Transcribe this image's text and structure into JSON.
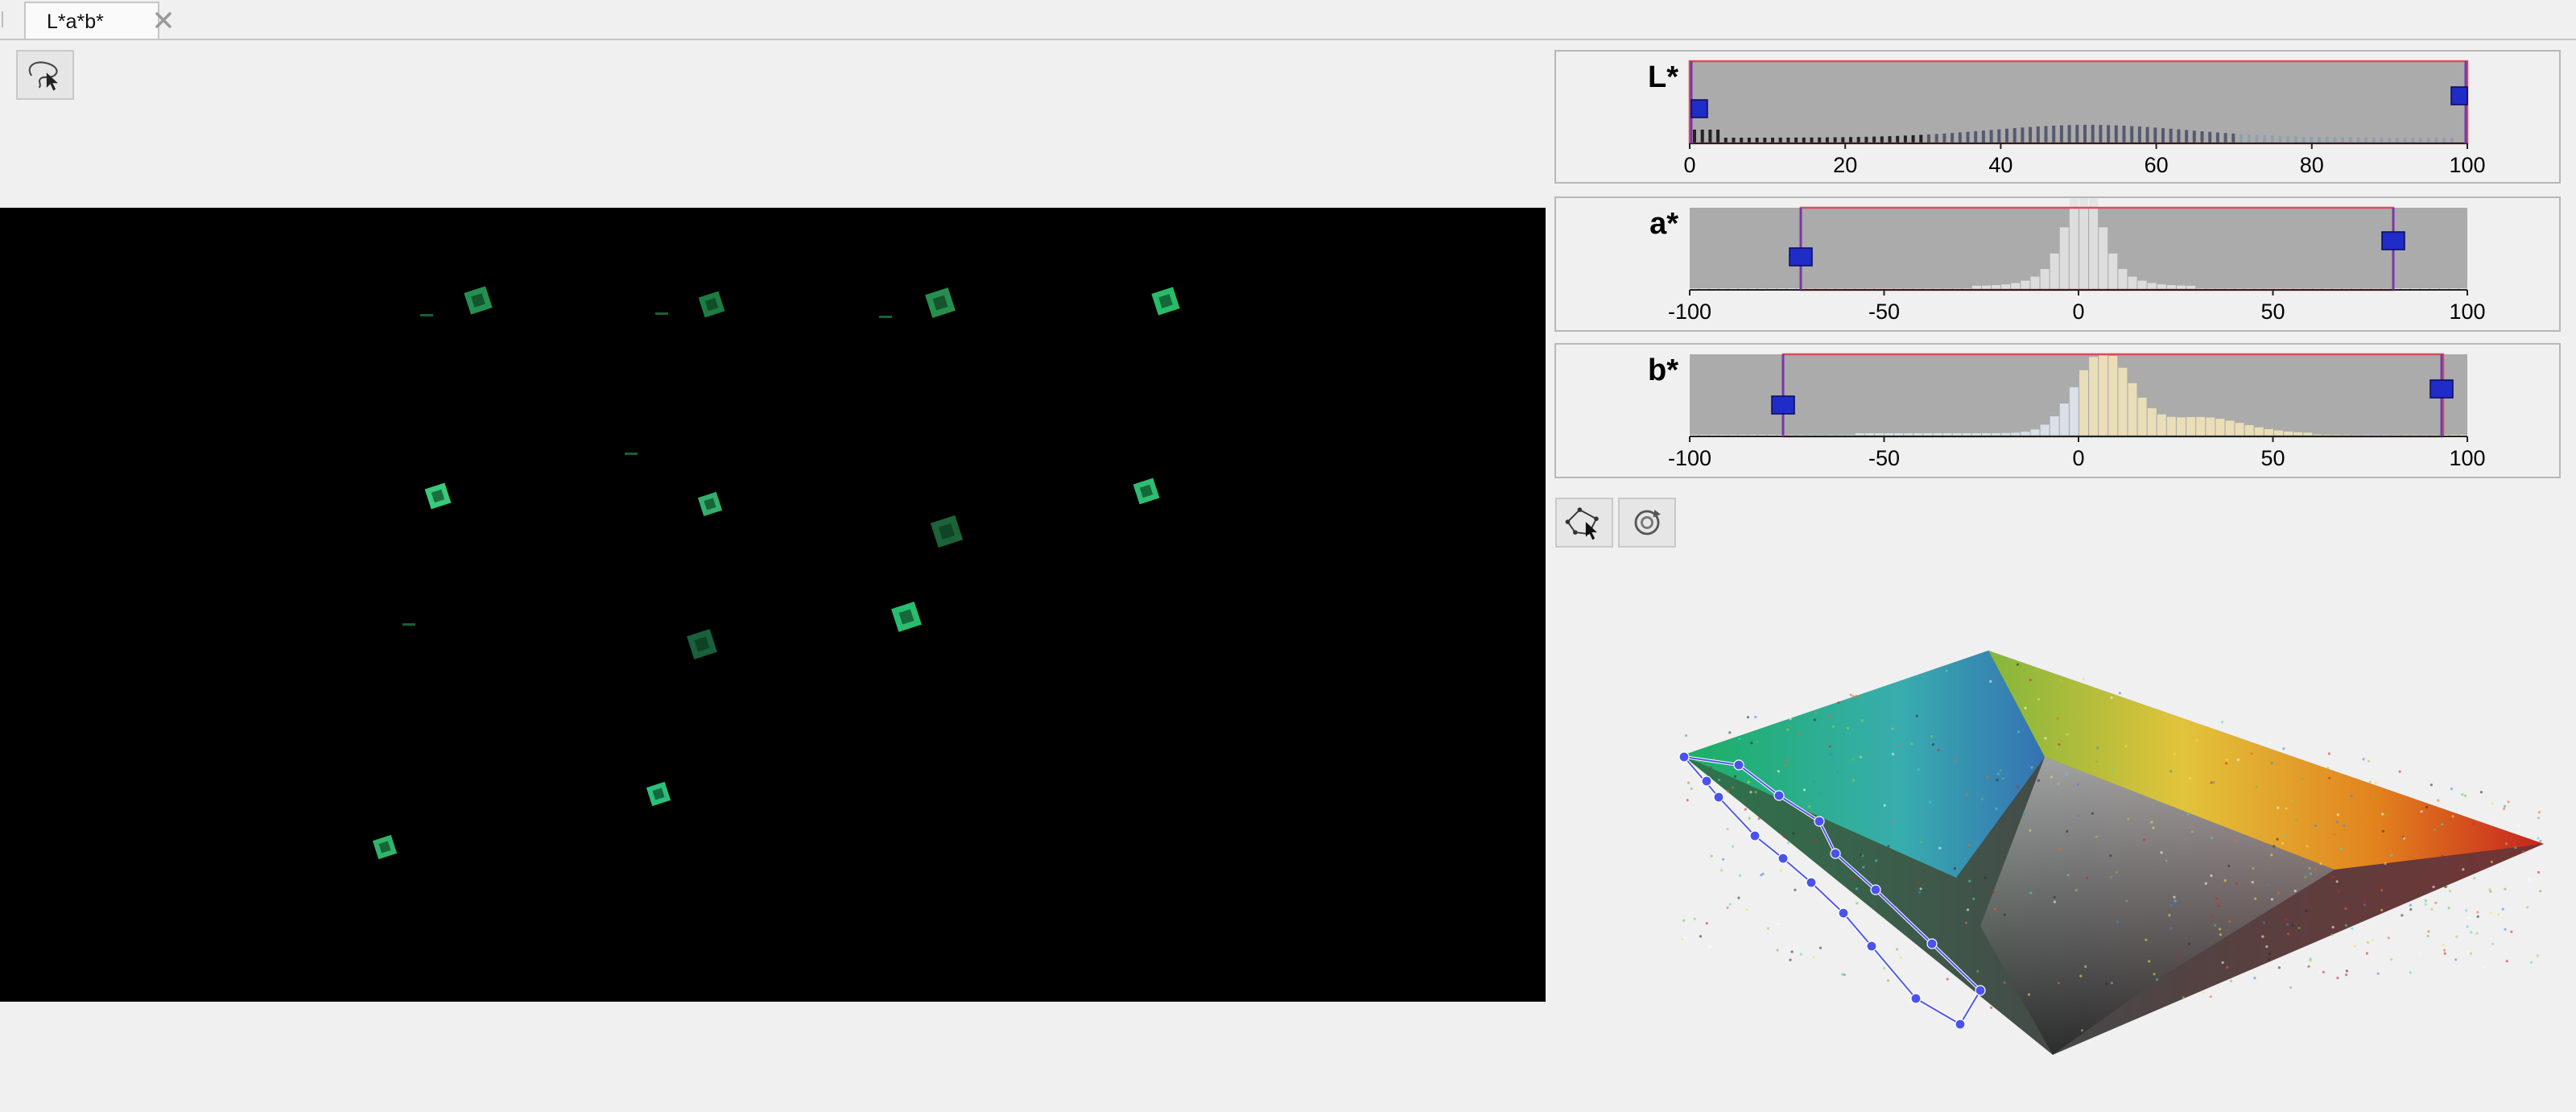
{
  "tab": {
    "label": "L*a*b*",
    "close_icon": "close-icon"
  },
  "toolbar": {
    "freehand_icon": "freehand-roi-icon",
    "polygon_icon": "polygon-roi-icon",
    "rotate_icon": "rotate-3d-icon"
  },
  "colors": {
    "window_bg": "#f0f0f0",
    "hist_bg": "#ababab",
    "range_outline": "#d84f59",
    "slider_line": "#7a37a8",
    "slider_handle": "#1f2cc8",
    "roi_line": "#5058e6",
    "roi_vertex": "#4a52ee"
  },
  "histograms": [
    {
      "id": "L",
      "label": "L*",
      "axis": {
        "min": 0,
        "max": 100
      },
      "ticks": [
        "0",
        "20",
        "40",
        "60",
        "80",
        "100"
      ],
      "selected_range": [
        0,
        100
      ]
    },
    {
      "id": "a",
      "label": "a*",
      "axis": {
        "min": -100,
        "max": 100
      },
      "ticks": [
        "-100",
        "-50",
        "0",
        "50",
        "100"
      ],
      "selected_range": [
        -71,
        81
      ]
    },
    {
      "id": "b",
      "label": "b*",
      "axis": {
        "min": -100,
        "max": 100
      },
      "ticks": [
        "-100",
        "-50",
        "0",
        "50",
        "100"
      ],
      "selected_range": [
        -76,
        94
      ]
    }
  ]
}
